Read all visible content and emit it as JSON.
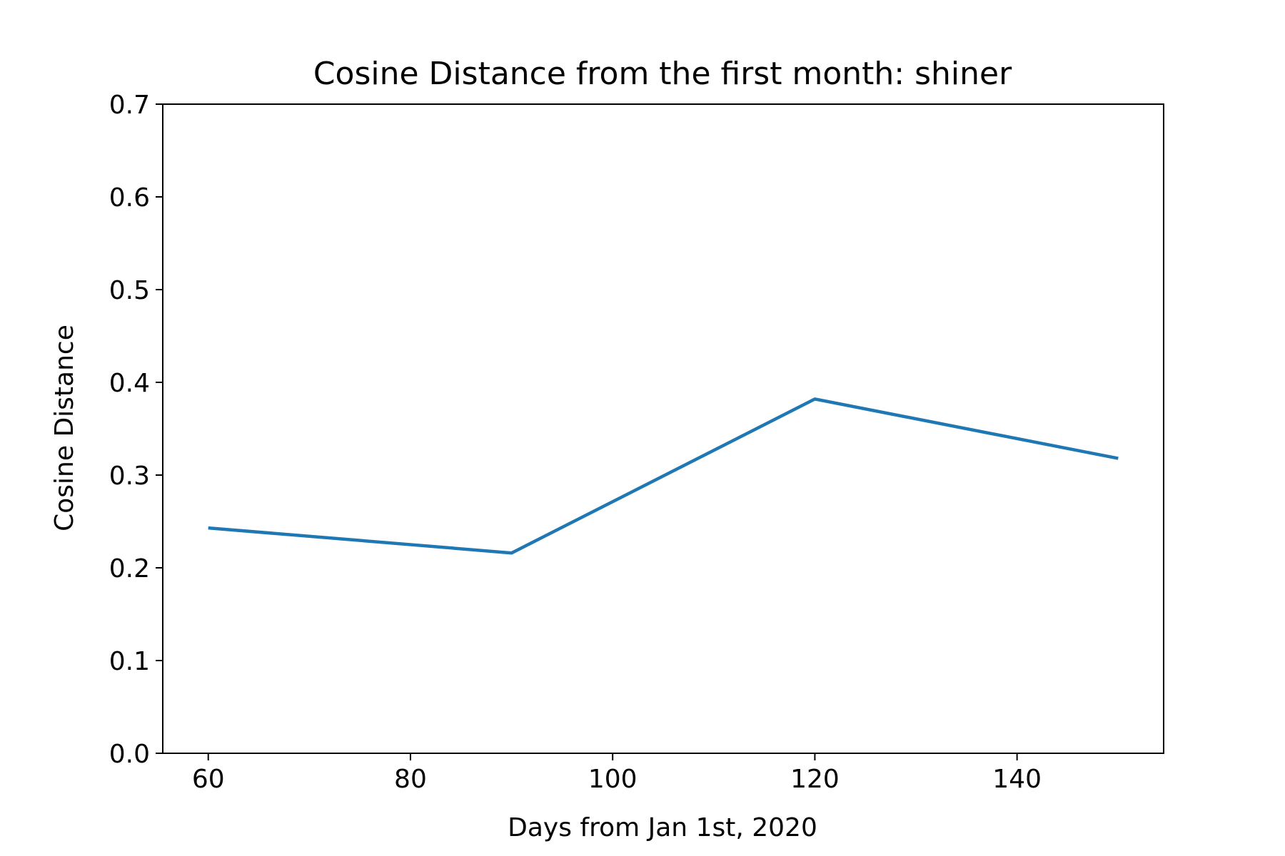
{
  "chart_data": {
    "type": "line",
    "title": "Cosine Distance from the first month: shiner",
    "xlabel": "Days from Jan 1st, 2020",
    "ylabel": "Cosine Distance",
    "xlim": [
      55.5,
      154.5
    ],
    "ylim": [
      0,
      0.7
    ],
    "xticks": [
      60,
      80,
      100,
      120,
      140
    ],
    "yticks": [
      0.0,
      0.1,
      0.2,
      0.3,
      0.4,
      0.5,
      0.6,
      0.7
    ],
    "grid": false,
    "series": [
      {
        "color": "#1f77b4",
        "x": [
          60,
          90,
          120,
          150
        ],
        "y": [
          0.243,
          0.216,
          0.382,
          0.318
        ]
      }
    ]
  }
}
